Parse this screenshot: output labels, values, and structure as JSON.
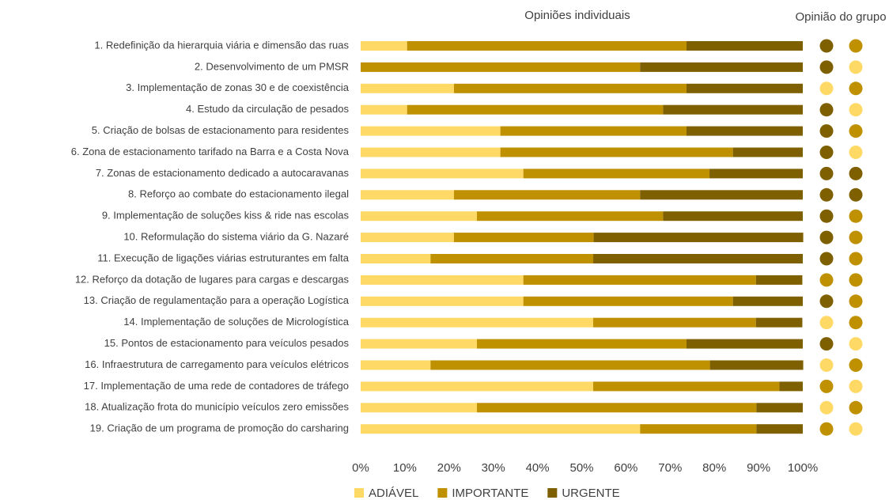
{
  "chart_data": {
    "type": "stacked-barh",
    "title": "Opiniões individuais",
    "dots_title": "Opinião do grupo",
    "categories": [
      "1. Redefinição da hierarquia viária e dimensão das ruas",
      "2. Desenvolvimento de um PMSR",
      "3. Implementação de zonas 30 e de coexistência",
      "4. Estudo da circulação de pesados",
      "5. Criação de bolsas de estacionamento para residentes",
      "6. Zona de estacionamento tarifado na Barra e a Costa Nova",
      "7. Zonas de estacionamento dedicado a autocaravanas",
      "8. Reforço ao combate do estacionamento ilegal",
      "9. Implementação de soluções kiss & ride nas escolas",
      "10. Reformulação do sistema viário da G. Nazaré",
      "11. Execução de ligações viárias estruturantes em falta",
      "12. Reforço da dotação de lugares para cargas e descargas",
      "13. Criação de regulamentação para a operação Logística",
      "14. Implementação de soluções de Micrologística",
      "15. Pontos de estacionamento para veículos pesados",
      "16. Infraestrutura de carregamento para veículos elétricos",
      "17. Implementação de uma rede de contadores de tráfego",
      "18. Atualização frota do município veículos zero emissões",
      "19. Criação de um programa de promoção do carsharing"
    ],
    "series": [
      {
        "name": "ADIÁVEL",
        "color": "#ffd966",
        "values": [
          10.5,
          0,
          21.1,
          10.5,
          31.6,
          31.6,
          36.8,
          21.1,
          26.3,
          21.1,
          15.8,
          36.8,
          36.8,
          52.6,
          26.3,
          15.8,
          52.6,
          26.3,
          63.2
        ]
      },
      {
        "name": "IMPORTANTE",
        "color": "#bf9000",
        "values": [
          63.2,
          63.2,
          52.6,
          57.9,
          42.1,
          52.6,
          42.1,
          42.1,
          42.1,
          31.6,
          36.8,
          52.6,
          47.4,
          36.8,
          47.4,
          63.2,
          42.1,
          63.2,
          26.3
        ]
      },
      {
        "name": "URGENTE",
        "color": "#7f6000",
        "values": [
          26.3,
          36.8,
          26.3,
          31.6,
          26.3,
          15.8,
          21.1,
          36.8,
          31.6,
          47.4,
          47.4,
          10.5,
          15.8,
          10.5,
          26.3,
          21.1,
          5.3,
          10.5,
          10.5
        ]
      }
    ],
    "dots": [
      [
        "URGENTE",
        "URGENTE",
        "ADIÁVEL",
        "URGENTE",
        "URGENTE",
        "URGENTE",
        "URGENTE",
        "URGENTE",
        "URGENTE",
        "URGENTE",
        "URGENTE",
        "IMPORTANTE",
        "URGENTE",
        "ADIÁVEL",
        "URGENTE",
        "ADIÁVEL",
        "IMPORTANTE",
        "ADIÁVEL",
        "IMPORTANTE"
      ],
      [
        "IMPORTANTE",
        "ADIÁVEL",
        "IMPORTANTE",
        "ADIÁVEL",
        "IMPORTANTE",
        "ADIÁVEL",
        "URGENTE",
        "URGENTE",
        "IMPORTANTE",
        "IMPORTANTE",
        "IMPORTANTE",
        "IMPORTANTE",
        "IMPORTANTE",
        "IMPORTANTE",
        "ADIÁVEL",
        "IMPORTANTE",
        "ADIÁVEL",
        "IMPORTANTE",
        "ADIÁVEL"
      ]
    ],
    "xlim": [
      0,
      100
    ],
    "xticks": [
      {
        "value": 0,
        "label": "0%"
      },
      {
        "value": 10,
        "label": "10%"
      },
      {
        "value": 20,
        "label": "20%"
      },
      {
        "value": 30,
        "label": "30%"
      },
      {
        "value": 40,
        "label": "40%"
      },
      {
        "value": 50,
        "label": "50%"
      },
      {
        "value": 60,
        "label": "60%"
      },
      {
        "value": 70,
        "label": "70%"
      },
      {
        "value": 80,
        "label": "80%"
      },
      {
        "value": 90,
        "label": "90%"
      },
      {
        "value": 100,
        "label": "100%"
      }
    ],
    "legend": "bottom"
  }
}
